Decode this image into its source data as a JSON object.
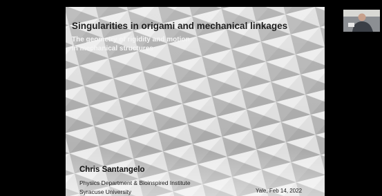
{
  "slide": {
    "title": "Singularities in origami and mechanical linkages",
    "subtitle": [
      "The geometry of rigidity and motion",
      "in mechanical structures"
    ],
    "presenter": "Chris Santangelo",
    "affiliation": [
      "Physics Department & Bioinspired Institute",
      "Syracuse University"
    ],
    "date": "Yale, Feb 14, 2022"
  }
}
